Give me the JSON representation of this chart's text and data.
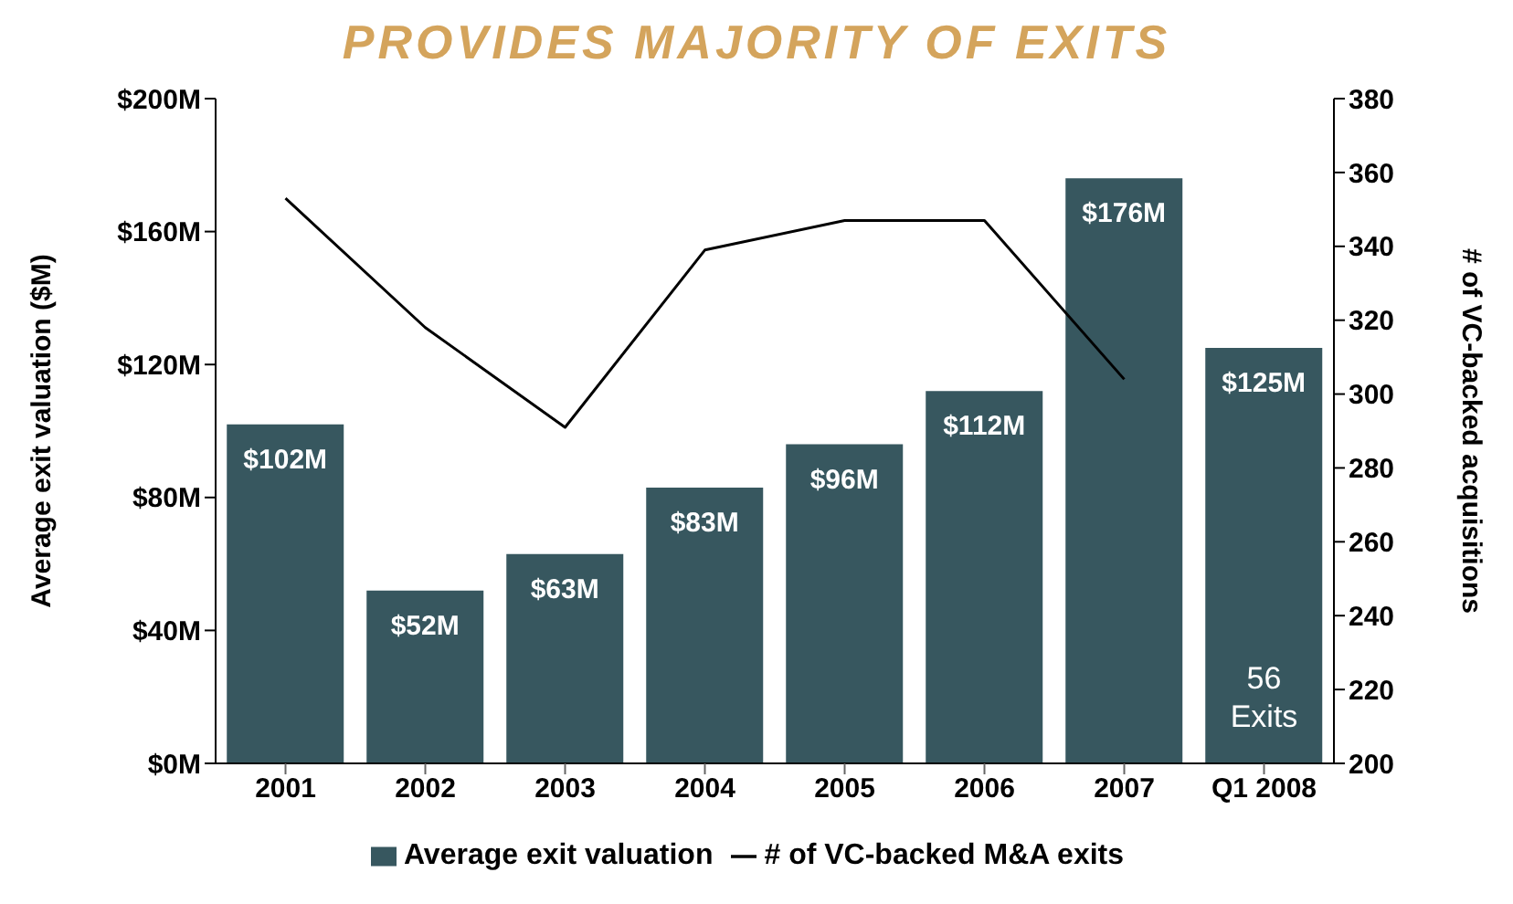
{
  "chart_data": {
    "type": "bar",
    "title": "PROVIDES MAJORITY OF EXITS",
    "ylabel": "Average exit valuation ($M)",
    "y2label": "# of VC-backed acquisitions",
    "categories": [
      "2001",
      "2002",
      "2003",
      "2004",
      "2005",
      "2006",
      "2007",
      "Q1 2008"
    ],
    "series": [
      {
        "name": "Average exit valuation",
        "color": "#37575f",
        "values": [
          102,
          52,
          63,
          83,
          96,
          112,
          176,
          125
        ],
        "value_labels": [
          "$102M",
          "$52M",
          "$63M",
          "$83M",
          "$96M",
          "$112M",
          "$176M",
          "$125M"
        ]
      },
      {
        "name": "# of VC-backed M&A exits",
        "type": "line",
        "axis": "y2",
        "color": "#000000",
        "values": [
          353,
          318,
          291,
          339,
          347,
          347,
          304,
          null
        ]
      }
    ],
    "ylim": [
      0,
      200
    ],
    "yticks": [
      {
        "value": 0,
        "label": "$0M"
      },
      {
        "value": 40,
        "label": "$40M"
      },
      {
        "value": 80,
        "label": "$80M"
      },
      {
        "value": 120,
        "label": "$120M"
      },
      {
        "value": 160,
        "label": "$160M"
      },
      {
        "value": 200,
        "label": "$200M"
      }
    ],
    "y2lim": [
      200,
      380
    ],
    "y2ticks": [
      200,
      220,
      240,
      260,
      280,
      300,
      320,
      340,
      360,
      380
    ],
    "annotations": [
      "56\nExits"
    ],
    "grid": false,
    "legend": "bottom",
    "marker": "none"
  }
}
